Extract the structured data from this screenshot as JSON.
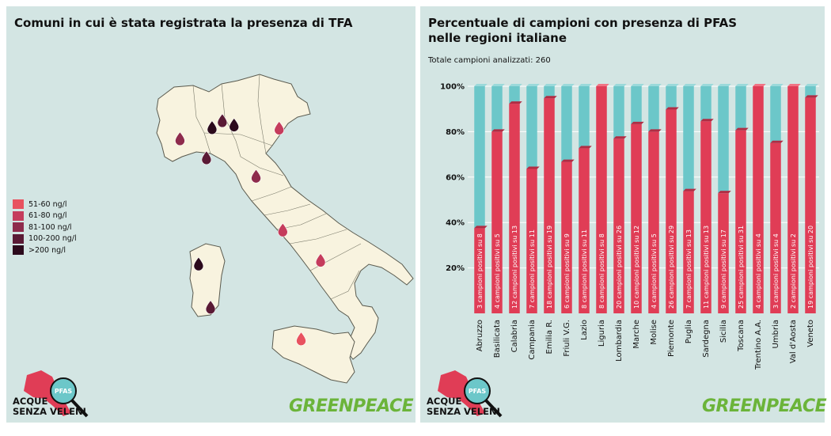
{
  "map_panel": {
    "title": "Comuni in cui è stata registrata la presenza di TFA",
    "legend": [
      {
        "label": "51-60 ng/l",
        "color": "#e8525f"
      },
      {
        "label": "61-80 ng/l",
        "color": "#c53c5c"
      },
      {
        "label": "81-100 ng/l",
        "color": "#8e2b4c"
      },
      {
        "label": "100-200 ng/l",
        "color": "#5a1a35"
      },
      {
        "label": ">200 ng/l",
        "color": "#2c0a1c"
      }
    ]
  },
  "chart_panel": {
    "title_line1": "Percentuale di campioni con presenza di PFAS",
    "title_line2": "nelle regioni italiane",
    "subtitle": "Totale campioni analizzati: 260"
  },
  "branding": {
    "logo_line1": "ACQUE",
    "logo_line2": "SENZA VELENI",
    "logo_badge": "PFAS",
    "greenpeace": "GREENPEACE"
  },
  "colors": {
    "positive": "#e03d56",
    "negative": "#6cc7c9",
    "background": "#d3e5e3",
    "land": "#f8f3df"
  },
  "chart_data": {
    "type": "bar",
    "stacked": true,
    "y_ticks": [
      "20%",
      "40%",
      "60%",
      "80%",
      "100%"
    ],
    "ylim": [
      0,
      100
    ],
    "categories": [
      "Abruzzo",
      "Basilicata",
      "Calabria",
      "Campania",
      "Emilia R.",
      "Friuli V.G.",
      "Lazio",
      "Liguria",
      "Lombardia",
      "Marche",
      "Molise",
      "Piemonte",
      "Puglia",
      "Sardegna",
      "Sicilia",
      "Toscana",
      "Trentino A.A.",
      "Umbria",
      "Val d'Aosta",
      "Veneto"
    ],
    "values": [
      37.5,
      80,
      92.3,
      63.6,
      94.7,
      66.7,
      72.7,
      100,
      76.9,
      83.3,
      80,
      89.7,
      53.8,
      84.6,
      52.9,
      80.6,
      100,
      75,
      100,
      95
    ],
    "bar_labels": [
      "3 campioni positivi su 8",
      "4 campioni positivi su 5",
      "12 campioni positivi su 13",
      "7 campioni positivi su 11",
      "18 campioni positivi su 19",
      "6 campioni positivi su 9",
      "8 campioni positivi su 11",
      "8 campioni positivi su 8",
      "20 campioni positivi su 26",
      "10 campioni positivi su 12",
      "4 campioni positivi su 5",
      "26 campioni positivi su 29",
      "7 campioni positivi su 13",
      "11 campioni positivi su 13",
      "9 campioni positivi su 17",
      "25 campioni positivi su 31",
      "4 campioni positivi su 4",
      "3 campioni positivi su 4",
      "2 campioni positivi su 2",
      "19 campioni positivi su 20"
    ]
  },
  "map_markers": [
    {
      "lat": 45.7,
      "lon": 9.67,
      "level": 3
    },
    {
      "lat": 45.55,
      "lon": 10.22,
      "level": 4
    },
    {
      "lat": 45.46,
      "lon": 9.19,
      "level": 4
    },
    {
      "lat": 45.07,
      "lon": 7.69,
      "level": 2
    },
    {
      "lat": 45.44,
      "lon": 12.33,
      "level": 1
    },
    {
      "lat": 44.41,
      "lon": 8.93,
      "level": 3
    },
    {
      "lat": 43.77,
      "lon": 11.25,
      "level": 2
    },
    {
      "lat": 41.9,
      "lon": 12.5,
      "level": 1
    },
    {
      "lat": 40.85,
      "lon": 14.27,
      "level": 1
    },
    {
      "lat": 39.22,
      "lon": 9.12,
      "level": 3
    },
    {
      "lat": 38.12,
      "lon": 13.36,
      "level": 0
    },
    {
      "lat": 40.72,
      "lon": 8.56,
      "level": 4
    }
  ]
}
